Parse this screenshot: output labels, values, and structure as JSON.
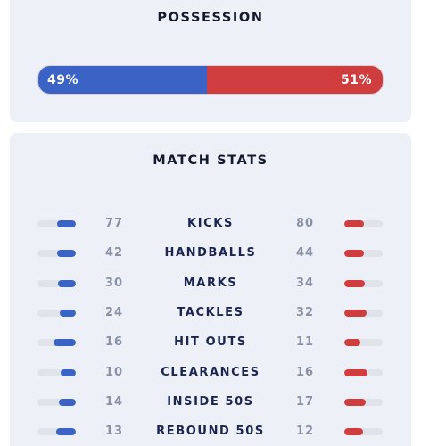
{
  "possession": {
    "title": "POSSESSION",
    "home_percent": 49,
    "away_percent": 51,
    "home_label": "49%",
    "away_label": "51%",
    "home_color": "#3b63c6",
    "away_color": "#cf3d3f"
  },
  "match_stats": {
    "title": "MATCH STATS",
    "rows": [
      {
        "label": "KICKS",
        "home": "77",
        "away": "80"
      },
      {
        "label": "HANDBALLS",
        "home": "42",
        "away": "44"
      },
      {
        "label": "MARKS",
        "home": "30",
        "away": "34"
      },
      {
        "label": "TACKLES",
        "home": "24",
        "away": "32"
      },
      {
        "label": "HIT OUTS",
        "home": "16",
        "away": "11"
      },
      {
        "label": "CLEARANCES",
        "home": "10",
        "away": "16"
      },
      {
        "label": "INSIDE 50S",
        "home": "14",
        "away": "17"
      },
      {
        "label": "REBOUND 50S",
        "home": "13",
        "away": "12"
      }
    ]
  }
}
